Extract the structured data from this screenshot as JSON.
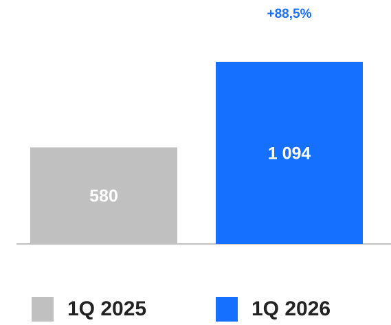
{
  "chart_data": {
    "type": "bar",
    "categories": [
      "1Q 2025",
      "1Q 2026"
    ],
    "values": [
      580,
      1094
    ],
    "value_labels": [
      "580",
      "1 094"
    ],
    "change_label": "+88,5%",
    "colors": [
      "#c0c0c0",
      "#1670ff"
    ],
    "baseline_color": "#c0c0c0",
    "change_color": "#1670ff",
    "ylim": [
      0,
      1300
    ],
    "grid": false,
    "legend_placement": "bottom",
    "title": "",
    "xlabel": "",
    "ylabel": ""
  },
  "legend": {
    "items": [
      {
        "label": "1Q 2025",
        "color": "#c0c0c0"
      },
      {
        "label": "1Q 2026",
        "color": "#1670ff"
      }
    ]
  }
}
